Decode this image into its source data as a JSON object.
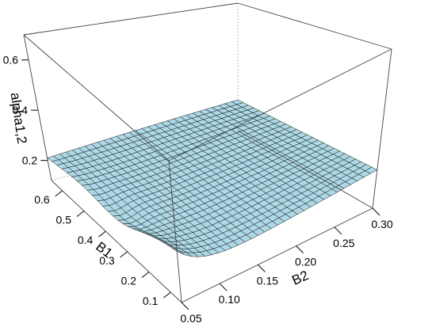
{
  "chart_data": {
    "type": "surface",
    "title": "",
    "x_axis": {
      "label": "B2",
      "range": [
        0.05,
        0.3
      ],
      "ticks": [
        "0.05",
        "0.10",
        "0.15",
        "0.20",
        "0.25",
        "0.30"
      ]
    },
    "y_axis": {
      "label": "B1",
      "range": [
        0.05,
        0.65
      ],
      "ticks": [
        "0.1",
        "0.2",
        "0.3",
        "0.4",
        "0.5",
        "0.6"
      ]
    },
    "z_axis": {
      "label": "alpha1,2",
      "range": [
        0.12,
        0.7
      ],
      "ticks": [
        "0.2",
        "0.4",
        "0.6"
      ]
    },
    "surface_color": "#add8e6",
    "grid_color": "#000000",
    "box": "dotted"
  }
}
